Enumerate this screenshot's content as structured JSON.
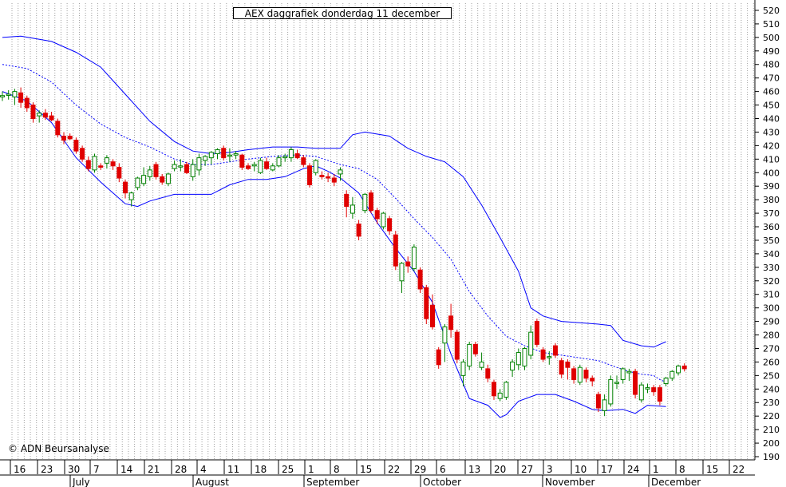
{
  "chart_data": {
    "type": "candlestick",
    "title": "AEX daggrafiek donderdag 11 december",
    "copyright": "© ADN Beursanalyse",
    "y_ticks": [
      190,
      200,
      210,
      220,
      230,
      240,
      250,
      260,
      270,
      280,
      290,
      300,
      310,
      320,
      330,
      340,
      350,
      360,
      370,
      380,
      390,
      400,
      410,
      420,
      430,
      440,
      450,
      460,
      470,
      480,
      490,
      500,
      510,
      520
    ],
    "ylim": [
      185,
      525
    ],
    "x_day_labels": [
      "16",
      "23",
      "30",
      "7",
      "14",
      "21",
      "28",
      "4",
      "11",
      "18",
      "25",
      "1",
      "8",
      "15",
      "22",
      "29",
      "6",
      "13",
      "20",
      "27",
      "3",
      "10",
      "17",
      "24",
      "1",
      "8",
      "15",
      "22"
    ],
    "x_month_labels": [
      "July",
      "August",
      "September",
      "October",
      "November",
      "December"
    ],
    "grid": "vertical dotted",
    "colors": {
      "up": "#008000",
      "down": "#e00000",
      "band": "#0000ff",
      "grid": "#a0a0a0"
    },
    "candles": [
      {
        "o": 456,
        "h": 460,
        "l": 453,
        "c": 457
      },
      {
        "o": 458,
        "h": 461,
        "l": 454,
        "c": 458
      },
      {
        "o": 456,
        "h": 462,
        "l": 450,
        "c": 460
      },
      {
        "o": 459,
        "h": 463,
        "l": 448,
        "c": 452
      },
      {
        "o": 455,
        "h": 457,
        "l": 445,
        "c": 448
      },
      {
        "o": 450,
        "h": 452,
        "l": 437,
        "c": 440
      },
      {
        "o": 442,
        "h": 446,
        "l": 437,
        "c": 444
      },
      {
        "o": 444,
        "h": 447,
        "l": 439,
        "c": 441
      },
      {
        "o": 442,
        "h": 445,
        "l": 438,
        "c": 439
      },
      {
        "o": 438,
        "h": 440,
        "l": 426,
        "c": 428
      },
      {
        "o": 427,
        "h": 430,
        "l": 421,
        "c": 424
      },
      {
        "o": 427,
        "h": 429,
        "l": 424,
        "c": 425
      },
      {
        "o": 424,
        "h": 426,
        "l": 414,
        "c": 416
      },
      {
        "o": 418,
        "h": 420,
        "l": 408,
        "c": 410
      },
      {
        "o": 409,
        "h": 412,
        "l": 401,
        "c": 403
      },
      {
        "o": 402,
        "h": 414,
        "l": 400,
        "c": 412
      },
      {
        "o": 405,
        "h": 407,
        "l": 402,
        "c": 404
      },
      {
        "o": 407,
        "h": 413,
        "l": 403,
        "c": 411
      },
      {
        "o": 408,
        "h": 410,
        "l": 402,
        "c": 405
      },
      {
        "o": 404,
        "h": 407,
        "l": 393,
        "c": 396
      },
      {
        "o": 393,
        "h": 395,
        "l": 381,
        "c": 385
      },
      {
        "o": 380,
        "h": 386,
        "l": 375,
        "c": 385
      },
      {
        "o": 389,
        "h": 397,
        "l": 387,
        "c": 396
      },
      {
        "o": 392,
        "h": 404,
        "l": 390,
        "c": 398
      },
      {
        "o": 397,
        "h": 405,
        "l": 394,
        "c": 402
      },
      {
        "o": 406,
        "h": 408,
        "l": 395,
        "c": 397
      },
      {
        "o": 397,
        "h": 399,
        "l": 391,
        "c": 393
      },
      {
        "o": 392,
        "h": 400,
        "l": 390,
        "c": 399
      },
      {
        "o": 403,
        "h": 409,
        "l": 401,
        "c": 406
      },
      {
        "o": 405,
        "h": 410,
        "l": 401,
        "c": 405
      },
      {
        "o": 406,
        "h": 408,
        "l": 399,
        "c": 400
      },
      {
        "o": 397,
        "h": 410,
        "l": 394,
        "c": 406
      },
      {
        "o": 402,
        "h": 414,
        "l": 398,
        "c": 411
      },
      {
        "o": 409,
        "h": 413,
        "l": 405,
        "c": 412
      },
      {
        "o": 411,
        "h": 416,
        "l": 406,
        "c": 415
      },
      {
        "o": 414,
        "h": 418,
        "l": 410,
        "c": 417
      },
      {
        "o": 418,
        "h": 420,
        "l": 409,
        "c": 411
      },
      {
        "o": 413,
        "h": 418,
        "l": 408,
        "c": 413
      },
      {
        "o": 413,
        "h": 416,
        "l": 410,
        "c": 414
      },
      {
        "o": 413,
        "h": 414,
        "l": 402,
        "c": 404
      },
      {
        "o": 405,
        "h": 407,
        "l": 402,
        "c": 403
      },
      {
        "o": 405,
        "h": 408,
        "l": 401,
        "c": 406
      },
      {
        "o": 400,
        "h": 411,
        "l": 399,
        "c": 409
      },
      {
        "o": 408,
        "h": 411,
        "l": 402,
        "c": 403
      },
      {
        "o": 402,
        "h": 407,
        "l": 401,
        "c": 405
      },
      {
        "o": 405,
        "h": 413,
        "l": 404,
        "c": 411
      },
      {
        "o": 411,
        "h": 414,
        "l": 408,
        "c": 412
      },
      {
        "o": 411,
        "h": 419,
        "l": 408,
        "c": 417
      },
      {
        "o": 414,
        "h": 417,
        "l": 410,
        "c": 411
      },
      {
        "o": 411,
        "h": 413,
        "l": 404,
        "c": 406
      },
      {
        "o": 405,
        "h": 407,
        "l": 389,
        "c": 391
      },
      {
        "o": 400,
        "h": 410,
        "l": 398,
        "c": 409
      },
      {
        "o": 398,
        "h": 401,
        "l": 395,
        "c": 397
      },
      {
        "o": 397,
        "h": 400,
        "l": 393,
        "c": 396
      },
      {
        "o": 396,
        "h": 399,
        "l": 390,
        "c": 393
      },
      {
        "o": 399,
        "h": 404,
        "l": 394,
        "c": 402
      },
      {
        "o": 384,
        "h": 387,
        "l": 367,
        "c": 375
      },
      {
        "o": 370,
        "h": 382,
        "l": 366,
        "c": 376
      },
      {
        "o": 362,
        "h": 365,
        "l": 350,
        "c": 353
      },
      {
        "o": 372,
        "h": 385,
        "l": 370,
        "c": 384
      },
      {
        "o": 385,
        "h": 387,
        "l": 370,
        "c": 372
      },
      {
        "o": 372,
        "h": 374,
        "l": 362,
        "c": 366
      },
      {
        "o": 360,
        "h": 371,
        "l": 358,
        "c": 370
      },
      {
        "o": 366,
        "h": 368,
        "l": 354,
        "c": 357
      },
      {
        "o": 354,
        "h": 357,
        "l": 328,
        "c": 331
      },
      {
        "o": 320,
        "h": 334,
        "l": 311,
        "c": 333
      },
      {
        "o": 334,
        "h": 338,
        "l": 326,
        "c": 331
      },
      {
        "o": 329,
        "h": 347,
        "l": 327,
        "c": 345
      },
      {
        "o": 328,
        "h": 330,
        "l": 311,
        "c": 314
      },
      {
        "o": 315,
        "h": 317,
        "l": 288,
        "c": 292
      },
      {
        "o": 302,
        "h": 310,
        "l": 284,
        "c": 286
      },
      {
        "o": 269,
        "h": 271,
        "l": 255,
        "c": 258
      },
      {
        "o": 274,
        "h": 288,
        "l": 260,
        "c": 286
      },
      {
        "o": 294,
        "h": 303,
        "l": 278,
        "c": 284
      },
      {
        "o": 282,
        "h": 284,
        "l": 259,
        "c": 262
      },
      {
        "o": 250,
        "h": 262,
        "l": 242,
        "c": 260
      },
      {
        "o": 257,
        "h": 275,
        "l": 254,
        "c": 273
      },
      {
        "o": 273,
        "h": 275,
        "l": 264,
        "c": 266
      },
      {
        "o": 256,
        "h": 267,
        "l": 254,
        "c": 260
      },
      {
        "o": 255,
        "h": 258,
        "l": 245,
        "c": 248
      },
      {
        "o": 245,
        "h": 247,
        "l": 232,
        "c": 235
      },
      {
        "o": 233,
        "h": 240,
        "l": 231,
        "c": 237
      },
      {
        "o": 234,
        "h": 246,
        "l": 232,
        "c": 245
      },
      {
        "o": 254,
        "h": 262,
        "l": 249,
        "c": 260
      },
      {
        "o": 258,
        "h": 270,
        "l": 254,
        "c": 267
      },
      {
        "o": 257,
        "h": 271,
        "l": 254,
        "c": 270
      },
      {
        "o": 265,
        "h": 287,
        "l": 262,
        "c": 282
      },
      {
        "o": 290,
        "h": 292,
        "l": 271,
        "c": 273
      },
      {
        "o": 269,
        "h": 271,
        "l": 260,
        "c": 262
      },
      {
        "o": 264,
        "h": 268,
        "l": 258,
        "c": 264
      },
      {
        "o": 272,
        "h": 274,
        "l": 263,
        "c": 265
      },
      {
        "o": 261,
        "h": 263,
        "l": 248,
        "c": 251
      },
      {
        "o": 260,
        "h": 262,
        "l": 247,
        "c": 256
      },
      {
        "o": 255,
        "h": 257,
        "l": 244,
        "c": 247
      },
      {
        "o": 245,
        "h": 258,
        "l": 243,
        "c": 256
      },
      {
        "o": 254,
        "h": 256,
        "l": 245,
        "c": 248
      },
      {
        "o": 248,
        "h": 250,
        "l": 242,
        "c": 246
      },
      {
        "o": 236,
        "h": 238,
        "l": 223,
        "c": 226
      },
      {
        "o": 224,
        "h": 236,
        "l": 220,
        "c": 232
      },
      {
        "o": 229,
        "h": 250,
        "l": 227,
        "c": 247
      },
      {
        "o": 245,
        "h": 250,
        "l": 240,
        "c": 245
      },
      {
        "o": 247,
        "h": 256,
        "l": 244,
        "c": 255
      },
      {
        "o": 252,
        "h": 255,
        "l": 246,
        "c": 253
      },
      {
        "o": 253,
        "h": 255,
        "l": 233,
        "c": 236
      },
      {
        "o": 232,
        "h": 245,
        "l": 230,
        "c": 243
      },
      {
        "o": 240,
        "h": 244,
        "l": 237,
        "c": 241
      },
      {
        "o": 241,
        "h": 243,
        "l": 235,
        "c": 238
      },
      {
        "o": 241,
        "h": 243,
        "l": 228,
        "c": 231
      },
      {
        "o": 244,
        "h": 249,
        "l": 242,
        "c": 248
      },
      {
        "o": 248,
        "h": 254,
        "l": 246,
        "c": 253
      },
      {
        "o": 252,
        "h": 258,
        "l": 250,
        "c": 257
      },
      {
        "o": 257,
        "h": 259,
        "l": 253,
        "c": 255
      }
    ],
    "bollinger": {
      "upper": [
        [
          0,
          500
        ],
        [
          3,
          501
        ],
        [
          8,
          497
        ],
        [
          12,
          489
        ],
        [
          16,
          478
        ],
        [
          20,
          458
        ],
        [
          24,
          438
        ],
        [
          28,
          423
        ],
        [
          31,
          416
        ],
        [
          34,
          414
        ],
        [
          37,
          415
        ],
        [
          40,
          417
        ],
        [
          44,
          419
        ],
        [
          48,
          419
        ],
        [
          51,
          418
        ],
        [
          55,
          418
        ],
        [
          57,
          428
        ],
        [
          59,
          430
        ],
        [
          63,
          427
        ],
        [
          66,
          418
        ],
        [
          69,
          412
        ],
        [
          72,
          408
        ],
        [
          75,
          397
        ],
        [
          78,
          376
        ],
        [
          81,
          352
        ],
        [
          84,
          327
        ],
        [
          86,
          300
        ],
        [
          88,
          294
        ],
        [
          91,
          290
        ],
        [
          94,
          289
        ],
        [
          97,
          288
        ],
        [
          99,
          287
        ],
        [
          101,
          276
        ],
        [
          104,
          272
        ],
        [
          106,
          271
        ],
        [
          108,
          275
        ]
      ],
      "middle": [
        [
          0,
          480
        ],
        [
          4,
          477
        ],
        [
          8,
          467
        ],
        [
          12,
          450
        ],
        [
          16,
          436
        ],
        [
          20,
          426
        ],
        [
          24,
          419
        ],
        [
          28,
          410
        ],
        [
          31,
          406
        ],
        [
          34,
          406
        ],
        [
          37,
          408
        ],
        [
          40,
          410
        ],
        [
          44,
          412
        ],
        [
          48,
          413
        ],
        [
          51,
          412
        ],
        [
          55,
          406
        ],
        [
          58,
          403
        ],
        [
          61,
          395
        ],
        [
          64,
          381
        ],
        [
          67,
          366
        ],
        [
          70,
          352
        ],
        [
          73,
          336
        ],
        [
          76,
          312
        ],
        [
          79,
          294
        ],
        [
          82,
          279
        ],
        [
          85,
          272
        ],
        [
          88,
          267
        ],
        [
          91,
          265
        ],
        [
          94,
          263
        ],
        [
          97,
          261
        ],
        [
          100,
          256
        ],
        [
          102,
          253
        ],
        [
          104,
          251
        ],
        [
          106,
          250
        ],
        [
          107,
          247
        ],
        [
          108,
          245
        ]
      ],
      "lower": [
        [
          0,
          460
        ],
        [
          4,
          453
        ],
        [
          8,
          437
        ],
        [
          12,
          411
        ],
        [
          16,
          393
        ],
        [
          20,
          377
        ],
        [
          22,
          375
        ],
        [
          24,
          379
        ],
        [
          28,
          384
        ],
        [
          31,
          384
        ],
        [
          34,
          384
        ],
        [
          37,
          391
        ],
        [
          40,
          395
        ],
        [
          43,
          395
        ],
        [
          46,
          397
        ],
        [
          49,
          403
        ],
        [
          51,
          405
        ],
        [
          53,
          401
        ],
        [
          55,
          396
        ],
        [
          58,
          385
        ],
        [
          61,
          363
        ],
        [
          64,
          344
        ],
        [
          67,
          327
        ],
        [
          70,
          304
        ],
        [
          73,
          266
        ],
        [
          76,
          233
        ],
        [
          79,
          228
        ],
        [
          81,
          219
        ],
        [
          82,
          221
        ],
        [
          84,
          231
        ],
        [
          87,
          236
        ],
        [
          90,
          236
        ],
        [
          93,
          231
        ],
        [
          96,
          225
        ],
        [
          98,
          224
        ],
        [
          101,
          225
        ],
        [
          103,
          222
        ],
        [
          105,
          228
        ],
        [
          108,
          227
        ]
      ]
    }
  }
}
